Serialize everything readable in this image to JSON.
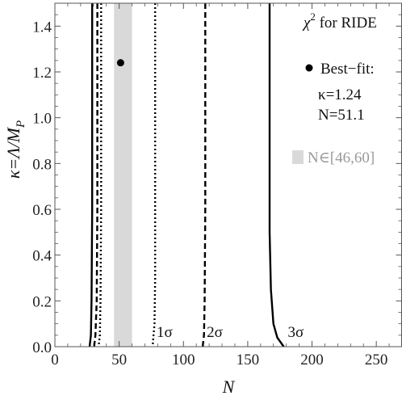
{
  "chart_data": {
    "type": "contour",
    "title": "",
    "legend_title": {
      "chi": "χ",
      "sup": "2",
      "rest": " for RIDE"
    },
    "xlabel": "N",
    "ylabel": {
      "kappa": "κ=Λ/M",
      "sub": "P"
    },
    "xlim": [
      0,
      270
    ],
    "ylim": [
      0,
      1.5
    ],
    "x_ticks": [
      0,
      50,
      100,
      150,
      200,
      250
    ],
    "x_tick_labels": [
      "0",
      "50",
      "100",
      "150",
      "200",
      "250"
    ],
    "y_ticks": [
      0,
      0.2,
      0.4,
      0.6,
      0.8,
      1.0,
      1.2,
      1.4
    ],
    "y_tick_labels": [
      "0.0",
      "0.2",
      "0.4",
      "0.6",
      "0.8",
      "1.0",
      "1.2",
      "1.4"
    ],
    "grid": false,
    "legend_position": "top-right",
    "band": {
      "label": "N∈[46,60]",
      "x_range": [
        46,
        60
      ],
      "color": "#d9d9d9"
    },
    "best_fit": {
      "label": "Best−fit:",
      "kappa_text": "κ=1.24",
      "n_text": "N=51.1",
      "x": 51.1,
      "y": 1.24
    },
    "series": [
      {
        "name": "1σ",
        "style": "dotted",
        "left": [
          [
            36,
            1.5
          ],
          [
            36,
            0.6
          ],
          [
            35.5,
            0.2
          ],
          [
            35,
            0.05
          ],
          [
            34,
            0
          ]
        ],
        "right": [
          [
            78,
            1.5
          ],
          [
            78,
            0.6
          ],
          [
            78,
            0.3
          ],
          [
            77.5,
            0.1
          ],
          [
            76,
            0
          ]
        ]
      },
      {
        "name": "2σ",
        "style": "dashed",
        "left": [
          [
            33,
            1.5
          ],
          [
            33,
            0.6
          ],
          [
            32.5,
            0.2
          ],
          [
            31.5,
            0.05
          ],
          [
            30.5,
            0
          ]
        ],
        "right": [
          [
            117,
            1.5
          ],
          [
            117,
            0.6
          ],
          [
            116.5,
            0.2
          ],
          [
            116,
            0.05
          ],
          [
            115,
            0
          ]
        ]
      },
      {
        "name": "3σ",
        "style": "solid",
        "left": [
          [
            29,
            1.5
          ],
          [
            29,
            0.6
          ],
          [
            28.5,
            0.2
          ],
          [
            28,
            0.05
          ],
          [
            27,
            0
          ]
        ],
        "right": [
          [
            167,
            1.5
          ],
          [
            167,
            0.5
          ],
          [
            168,
            0.25
          ],
          [
            170,
            0.1
          ],
          [
            173,
            0.04
          ],
          [
            178,
            0
          ]
        ]
      }
    ],
    "colors": {
      "curve": "#000000",
      "band": "#d9d9d9",
      "axis": "#555555",
      "band_label": "#9a9a9a"
    }
  }
}
